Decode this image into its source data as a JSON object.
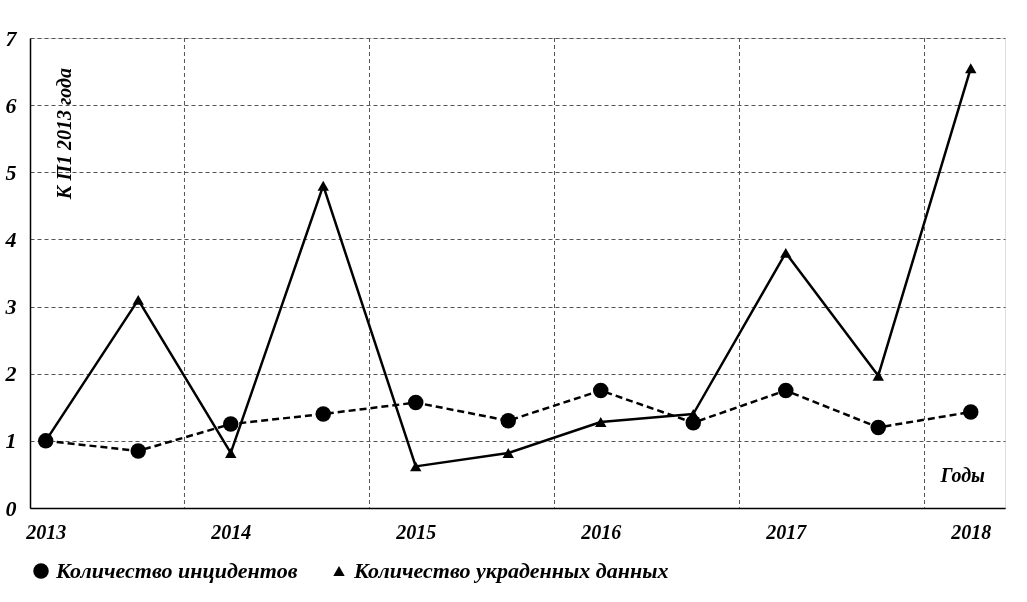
{
  "chart_data": {
    "type": "line",
    "xlabel": "Годы",
    "ylabel": "К П1 2013 года",
    "categories": [
      "2013",
      null,
      "2014",
      null,
      "2015",
      null,
      "2016",
      null,
      "2017",
      null,
      "2018"
    ],
    "series": [
      {
        "name": "Количество инцидентов",
        "color": "#000000",
        "line_style": "dashed",
        "marker": "circle",
        "values": [
          1.0,
          0.85,
          1.25,
          1.4,
          1.57,
          1.3,
          1.75,
          1.27,
          1.75,
          1.2,
          1.43
        ]
      },
      {
        "name": "Количество украденных данных",
        "color": "#000000",
        "line_style": "solid",
        "marker": "triangle",
        "values": [
          1.0,
          3.1,
          0.82,
          4.8,
          0.62,
          0.82,
          1.28,
          1.4,
          3.8,
          1.97,
          6.55
        ]
      }
    ],
    "ylim": [
      0,
      7
    ],
    "yticks": [
      0,
      1,
      2,
      3,
      4,
      5,
      6,
      7
    ],
    "grid": true,
    "legend": "bottom"
  }
}
